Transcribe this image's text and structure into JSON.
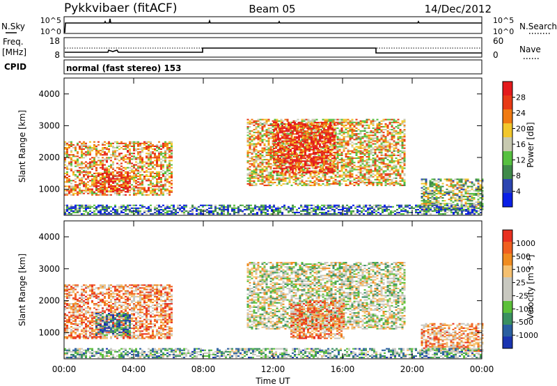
{
  "header": {
    "station": "Pykkvibaer (fitACF)",
    "beam": "Beam 05",
    "date": "14/Dec/2012"
  },
  "summary_panel": {
    "nsky_label": "N.Sky",
    "nsky_ticks": [
      "10^5",
      "10^0"
    ],
    "nsearch_label": "N.Search",
    "nsearch_ticks": [
      "10^5",
      "10^0"
    ],
    "freq_label": "Freq.",
    "freq_unit": "[MHz]",
    "freq_ticks": [
      "18",
      "8"
    ],
    "nave_label": "Nave",
    "nave_ticks": [
      "60",
      "0"
    ],
    "cpid_label": "CPID",
    "cpid_text": "normal (fast stereo) 153"
  },
  "chart_data": [
    {
      "type": "heatmap",
      "name": "power",
      "ylabel": "Slant Range [km]",
      "ylim": [
        180,
        4500
      ],
      "yticks": [
        "4000",
        "3000",
        "2000",
        "1000"
      ],
      "xlim": [
        0,
        24
      ],
      "colorbar": {
        "label": "Power [dB]",
        "ticks": [
          "28",
          "24",
          "20",
          "16",
          "12",
          "8",
          "4"
        ],
        "colors": [
          "#0a1fe6",
          "#2c45b0",
          "#3f8a4a",
          "#56c040",
          "#c7c9b0",
          "#f2c72c",
          "#f07a12",
          "#e83a16",
          "#e41a1c"
        ]
      },
      "regions": [
        {
          "t": [
            0,
            6.2
          ],
          "r": [
            800,
            2500
          ],
          "level": 0.65
        },
        {
          "t": [
            1.8,
            3.8
          ],
          "r": [
            900,
            1500
          ],
          "level": 0.9
        },
        {
          "t": [
            10.5,
            19.5
          ],
          "r": [
            1100,
            3200
          ],
          "level": 0.6
        },
        {
          "t": [
            12,
            15.5
          ],
          "r": [
            1500,
            3100
          ],
          "level": 0.9
        },
        {
          "t": [
            20.5,
            24
          ],
          "r": [
            300,
            1300
          ],
          "level": 0.45
        },
        {
          "t": [
            0,
            24
          ],
          "r": [
            200,
            500
          ],
          "level": 0.25
        }
      ]
    },
    {
      "type": "heatmap",
      "name": "velocity",
      "xlabel": "Time UT",
      "xticks": [
        "00:00",
        "04:00",
        "08:00",
        "12:00",
        "16:00",
        "20:00",
        "00:00"
      ],
      "ylabel": "Slant Range [km]",
      "ylim": [
        180,
        4500
      ],
      "yticks": [
        "4000",
        "3000",
        "2000",
        "1000"
      ],
      "xlim": [
        0,
        24
      ],
      "colorbar": {
        "label": "Velocity [m s⁻¹]",
        "ticks": [
          "1000",
          "500",
          "100",
          "25",
          "-25",
          "-100",
          "-500",
          "-1000"
        ],
        "colors": [
          "#1a34b0",
          "#2a5fa0",
          "#3a9060",
          "#5cc03a",
          "#c8c8c0",
          "#c8c8c0",
          "#f5c070",
          "#f08c20",
          "#f06020",
          "#e83020"
        ]
      },
      "regions": [
        {
          "t": [
            0,
            6.2
          ],
          "r": [
            800,
            2500
          ],
          "level": 0.75
        },
        {
          "t": [
            1.8,
            3.8
          ],
          "r": [
            900,
            1600
          ],
          "level": 0.2
        },
        {
          "t": [
            10.5,
            19.5
          ],
          "r": [
            1100,
            3200
          ],
          "level": 0.5
        },
        {
          "t": [
            13,
            16
          ],
          "r": [
            800,
            2000
          ],
          "level": 0.75
        },
        {
          "t": [
            20.5,
            24
          ],
          "r": [
            400,
            1300
          ],
          "level": 0.7
        },
        {
          "t": [
            0,
            24
          ],
          "r": [
            200,
            500
          ],
          "level": 0.35
        }
      ]
    }
  ]
}
